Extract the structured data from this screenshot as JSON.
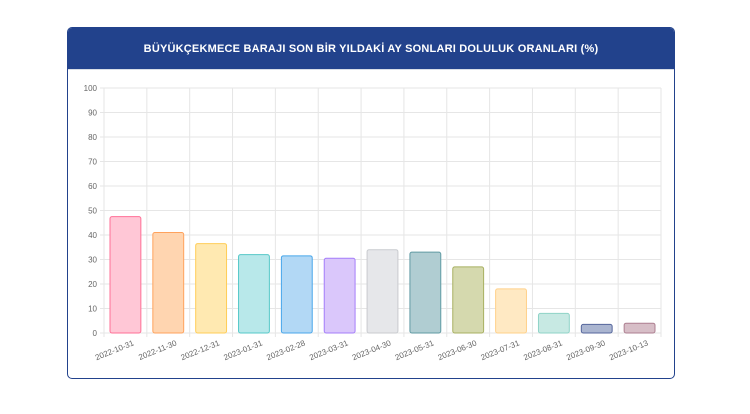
{
  "chart_data": {
    "type": "bar",
    "title": "BÜYÜKÇEKMECE BARAJI SON BİR YILDAKİ AY SONLARI DOLULUK ORANLARI (%)",
    "xlabel": "",
    "ylabel": "",
    "ylim": [
      0,
      100
    ],
    "yticks": [
      "0",
      "10",
      "20",
      "30",
      "40",
      "50",
      "60",
      "70",
      "80",
      "90",
      "100"
    ],
    "categories": [
      "2022-10-31",
      "2022-11-30",
      "2022-12-31",
      "2023-01-31",
      "2023-02-28",
      "2023-03-31",
      "2023-04-30",
      "2023-05-31",
      "2023-06-30",
      "2023-07-31",
      "2023-08-31",
      "2023-09-30",
      "2023-10-13"
    ],
    "values": [
      47.5,
      41,
      36.5,
      32,
      31.5,
      30.5,
      34,
      33,
      27,
      18,
      8,
      3.5,
      4
    ],
    "fill_colors": [
      "#ffc7d6",
      "#ffd5b0",
      "#ffe9b1",
      "#b8e8ea",
      "#b2d8f5",
      "#dac7fb",
      "#e6e7ea",
      "#b0cdd2",
      "#d5d9ae",
      "#ffe9c3",
      "#c7e9e3",
      "#aab5d0",
      "#d7bec7"
    ],
    "border_colors": [
      "#ff6f96",
      "#ffa25c",
      "#ffcd57",
      "#55c8c8",
      "#48a6ea",
      "#a47dfa",
      "#c9cbcf",
      "#5f9aa3",
      "#a8b061",
      "#ffd18a",
      "#8fd3c7",
      "#55669c",
      "#ad7f90"
    ],
    "grid": true,
    "legend": "none"
  }
}
